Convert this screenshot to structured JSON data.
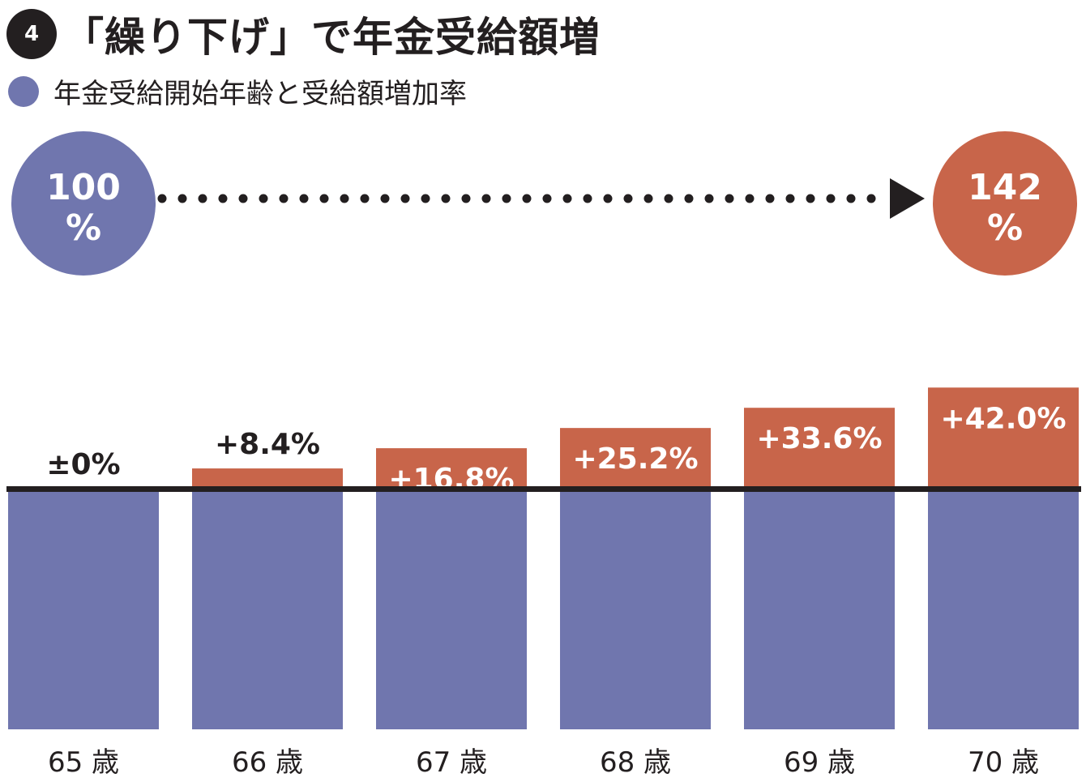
{
  "header": {
    "badge_number": "4",
    "title": "「繰り下げ」で年金受給額増"
  },
  "legend": {
    "label": "年金受給開始年齢と受給額増加率",
    "color": "#7076ae"
  },
  "comparison": {
    "start": {
      "value": "100",
      "unit": "%",
      "color": "#7076ae"
    },
    "end": {
      "value": "142",
      "unit": "%",
      "color": "#c8654a"
    },
    "arrow": "dotted-right-arrow-icon"
  },
  "chart_data": {
    "type": "bar",
    "stacked": true,
    "categories": [
      "65 歳",
      "66 歳",
      "67 歳",
      "68 歳",
      "69 歳",
      "70 歳"
    ],
    "series": [
      {
        "values": [
          100,
          100,
          100,
          100,
          100,
          100
        ],
        "color": "#7076ae"
      },
      {
        "values": [
          0,
          8.4,
          16.8,
          25.2,
          33.6,
          42.0
        ],
        "color": "#c8654a"
      }
    ],
    "data_labels": [
      "±0%",
      "+8.4%",
      "+16.8%",
      "+25.2%",
      "+33.6%",
      "+42.0%"
    ],
    "title": "",
    "xlabel": "",
    "ylabel": "",
    "ylim": [
      0,
      142
    ]
  }
}
